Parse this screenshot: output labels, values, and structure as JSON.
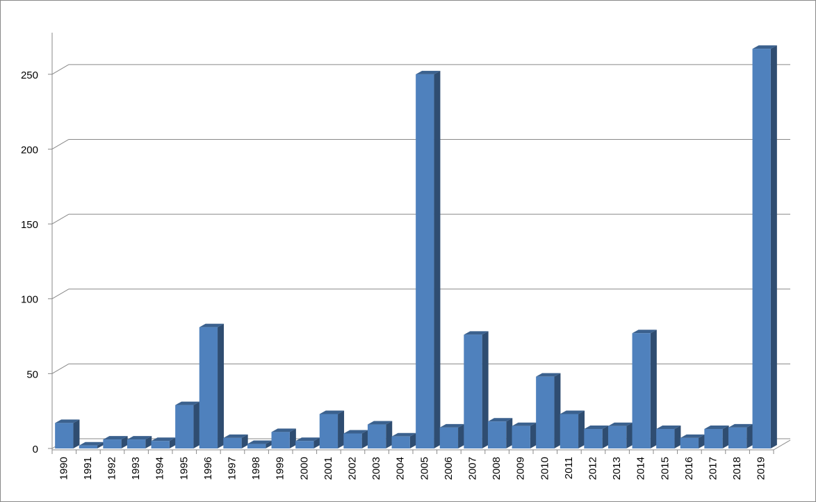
{
  "chart_data": {
    "type": "bar3d",
    "categories": [
      "1990",
      "1991",
      "1992",
      "1993",
      "1994",
      "1995",
      "1996",
      "1997",
      "1998",
      "1999",
      "2000",
      "2001",
      "2002",
      "2003",
      "2004",
      "2005",
      "2006",
      "2007",
      "2008",
      "2009",
      "2010",
      "2011",
      "2012",
      "2013",
      "2014",
      "2015",
      "2016",
      "2017",
      "2018",
      "2019"
    ],
    "values": [
      17,
      2,
      6,
      6,
      5,
      29,
      81,
      7,
      3,
      11,
      5,
      23,
      10,
      16,
      8,
      250,
      14,
      76,
      18,
      15,
      48,
      23,
      13,
      15,
      77,
      13,
      7,
      13,
      14,
      267
    ],
    "color": "#4f81bd",
    "ylim": [
      0,
      275
    ],
    "yticks": [
      0,
      50,
      100,
      150,
      200,
      250
    ],
    "grid": true
  }
}
